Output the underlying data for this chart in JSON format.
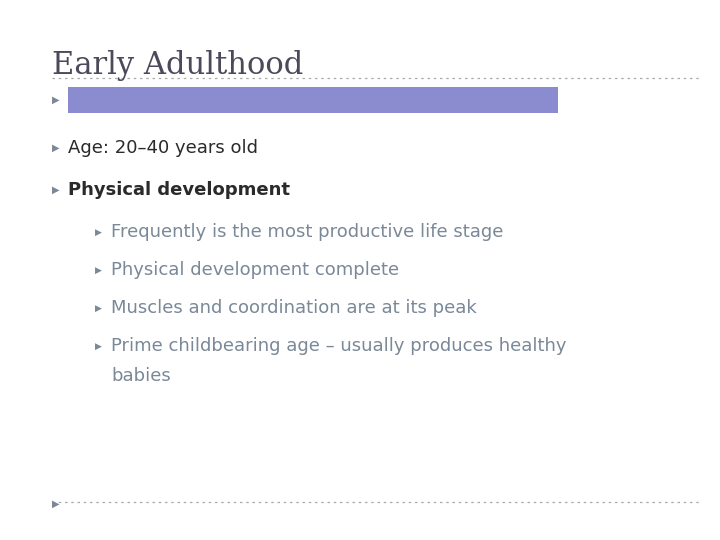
{
  "title": "Early Adulthood",
  "title_color": "#4a4a5a",
  "title_fontsize": 22,
  "title_font": "serif",
  "background_color": "#ffffff",
  "highlight_box_color": "#8b8bcf",
  "divider_color": "#aaaaaa",
  "bullet_color": "#7a8898",
  "bullet_char": "▶",
  "text_color": "#2a2a2a",
  "sub_text_color": "#7a8898",
  "items": [
    {
      "type": "box",
      "indent": 0
    },
    {
      "type": "bullet",
      "indent": 0,
      "text": "Age: 20–40 years old",
      "bold": false
    },
    {
      "type": "bullet",
      "indent": 0,
      "text": "Physical development",
      "bold": true
    },
    {
      "type": "bullet",
      "indent": 1,
      "text": "Frequently is the most productive life stage",
      "bold": false
    },
    {
      "type": "bullet",
      "indent": 1,
      "text": "Physical development complete",
      "bold": false
    },
    {
      "type": "bullet",
      "indent": 1,
      "text": "Muscles and coordination are at its peak",
      "bold": false
    },
    {
      "type": "bullet_wrap",
      "indent": 1,
      "text": "Prime childbearing age – usually produces healthy",
      "text2": "babies",
      "bold": false
    }
  ]
}
